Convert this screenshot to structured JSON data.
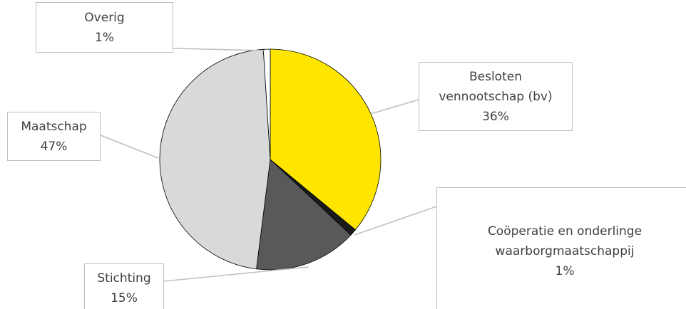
{
  "chart_data": {
    "type": "pie",
    "categories": [
      "Besloten vennootschap (bv)",
      "Coöperatie en onderlinge waarborgmaatschappij",
      "Stichting",
      "Maatschap",
      "Overig"
    ],
    "values": [
      36,
      1,
      15,
      47,
      1
    ],
    "value_labels": [
      "36%",
      "1%",
      "15%",
      "47%",
      "1%"
    ],
    "colors": [
      "#ffe600",
      "#1a1a1a",
      "#595959",
      "#d9d9d9",
      "#ffffff"
    ]
  }
}
